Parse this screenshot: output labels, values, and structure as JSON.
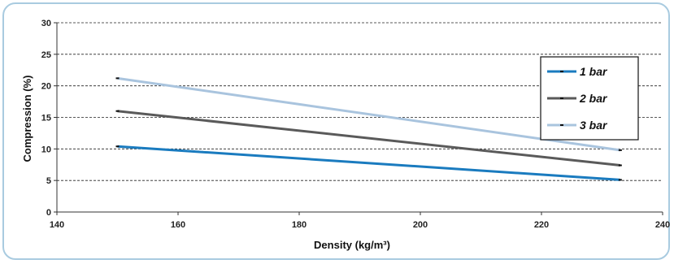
{
  "chart_data": {
    "type": "line",
    "xlabel": "Density (kg/m³)",
    "ylabel": "Compression (%)",
    "xlim": [
      140,
      240
    ],
    "ylim": [
      0,
      30
    ],
    "x_ticks": [
      140,
      160,
      180,
      200,
      220,
      240
    ],
    "y_ticks": [
      0,
      5,
      10,
      15,
      20,
      25,
      30
    ],
    "grid": "horizontal dashed",
    "legend_position": "right",
    "series": [
      {
        "name": "1 bar",
        "color": "#1a7bbf",
        "x": [
          150,
          233
        ],
        "y": [
          10.4,
          5.1
        ]
      },
      {
        "name": "2 bar",
        "color": "#5a5a5a",
        "x": [
          150,
          233
        ],
        "y": [
          16.0,
          7.4
        ]
      },
      {
        "name": "3 bar",
        "color": "#a9c4de",
        "x": [
          150,
          233
        ],
        "y": [
          21.2,
          9.8
        ]
      }
    ]
  }
}
